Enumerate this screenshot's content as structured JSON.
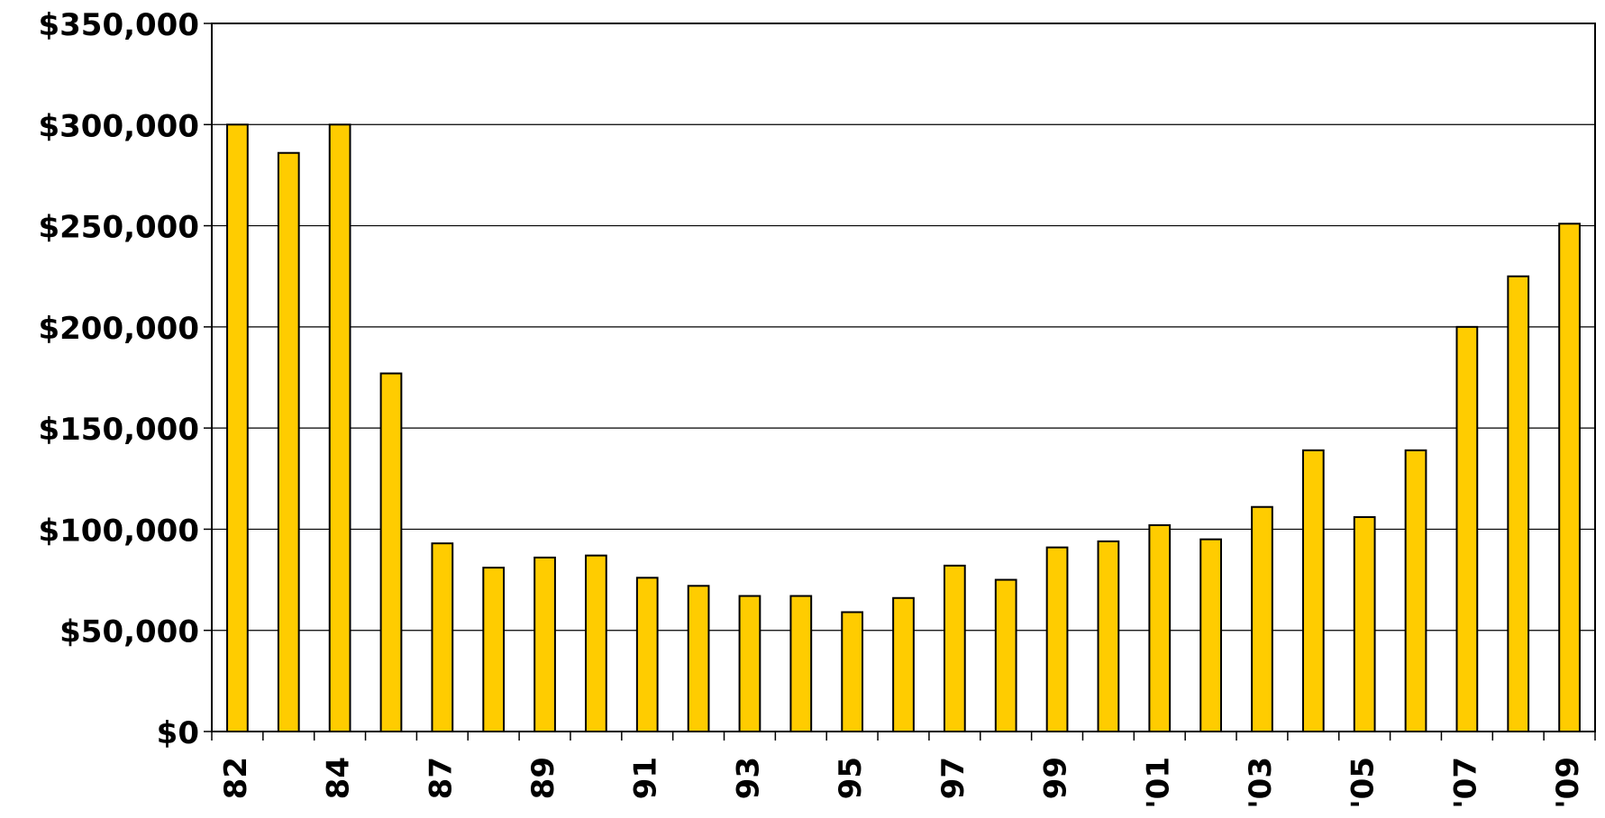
{
  "chart_data": {
    "type": "bar",
    "categories": [
      "82",
      "",
      "84",
      "",
      "87",
      "",
      "89",
      "",
      "91",
      "",
      "93",
      "",
      "95",
      "",
      "97",
      "",
      "99",
      "",
      "'01",
      "",
      "'03",
      "",
      "'05",
      "",
      "'07",
      "",
      "'09"
    ],
    "values": [
      300000,
      286000,
      300000,
      177000,
      93000,
      81000,
      86000,
      87000,
      76000,
      72000,
      67000,
      67000,
      59000,
      66000,
      82000,
      75000,
      91000,
      94000,
      102000,
      95000,
      111000,
      139000,
      106000,
      139000,
      200000,
      225000,
      251000
    ],
    "ylim": [
      0,
      350000
    ],
    "yticks": [
      "$0",
      "$50,000",
      "$100,000",
      "$150,000",
      "$200,000",
      "$250,000",
      "$300,000",
      "$350,000"
    ],
    "grid": true,
    "bar_color": "#FFCC00",
    "title": "",
    "xlabel": "",
    "ylabel": ""
  }
}
